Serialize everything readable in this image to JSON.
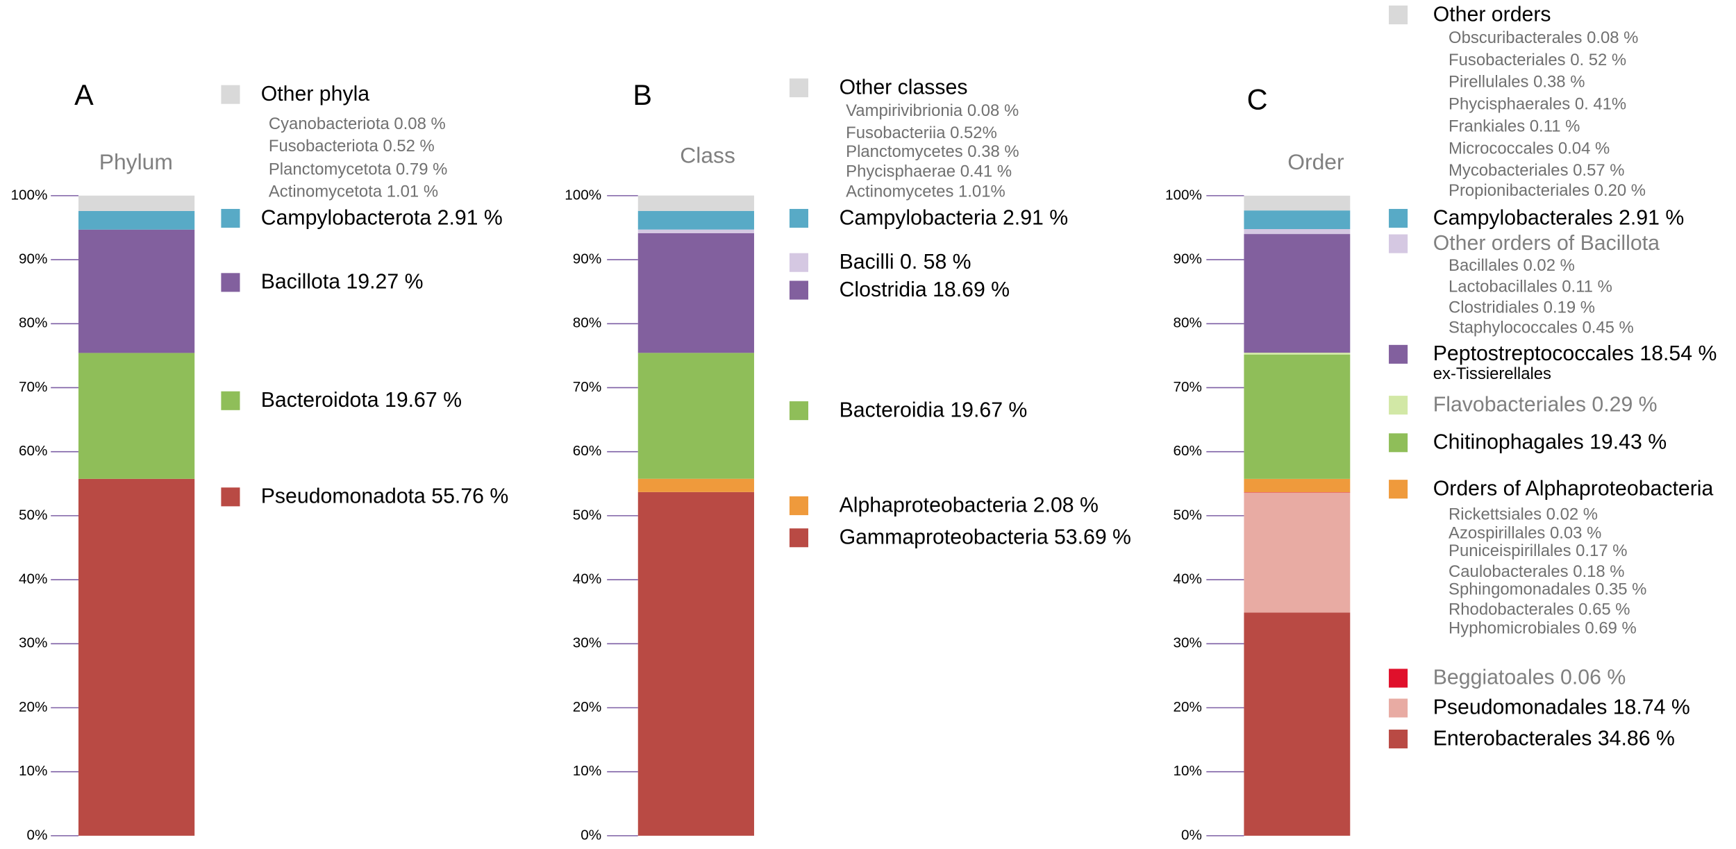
{
  "chart_data": [
    {
      "type": "stacked_bar",
      "panel": "A",
      "title": "Phylum",
      "ylim": [
        0,
        100
      ],
      "yticks": [
        {
          "value": 0,
          "label": "0%"
        },
        {
          "value": 10,
          "label": "10%"
        },
        {
          "value": 20,
          "label": "20%"
        },
        {
          "value": 30,
          "label": "30%"
        },
        {
          "value": 40,
          "label": "40%"
        },
        {
          "value": 50,
          "label": "50%"
        },
        {
          "value": 60,
          "label": "60%"
        },
        {
          "value": 70,
          "label": "70%"
        },
        {
          "value": 80,
          "label": "80%"
        },
        {
          "value": 90,
          "label": "90%"
        },
        {
          "value": 100,
          "label": "100%"
        }
      ],
      "series": [
        {
          "name": "Pseudomonadota 55.76 %",
          "color": "#b94a44",
          "values": [
            55.76
          ]
        },
        {
          "name": "Bacteroidota 19.67 %",
          "color": "#8fbe59",
          "values": [
            19.67
          ]
        },
        {
          "name": "Bacillota  19.27 %",
          "color": "#82609e",
          "values": [
            19.27
          ]
        },
        {
          "name": "Campylobacterota 2.91 %",
          "color": "#58aac6",
          "values": [
            2.91
          ]
        },
        {
          "name": "Other phyla",
          "color": "#d9d9d9",
          "values": [
            2.4
          ],
          "details": [
            "Cyanobacteriota 0.08 %",
            "Fusobacteriota 0.52 %",
            "Planctomycetota 0.79 %",
            "Actinomycetota 1.01 %"
          ]
        }
      ]
    },
    {
      "type": "stacked_bar",
      "panel": "B",
      "title": "Class",
      "ylim": [
        0,
        100
      ],
      "yticks": [
        {
          "value": 0,
          "label": "0%"
        },
        {
          "value": 10,
          "label": "10%"
        },
        {
          "value": 20,
          "label": "20%"
        },
        {
          "value": 30,
          "label": "30%"
        },
        {
          "value": 40,
          "label": "40%"
        },
        {
          "value": 50,
          "label": "50%"
        },
        {
          "value": 60,
          "label": "60%"
        },
        {
          "value": 70,
          "label": "70%"
        },
        {
          "value": 80,
          "label": "80%"
        },
        {
          "value": 90,
          "label": "90%"
        },
        {
          "value": 100,
          "label": "100%"
        }
      ],
      "series": [
        {
          "name": "Gammaproteobacteria 53.69 %",
          "color": "#b94a44",
          "values": [
            53.69
          ]
        },
        {
          "name": "Alphaproteobacteria 2.08 %",
          "color": "#ef9a3c",
          "values": [
            2.08
          ]
        },
        {
          "name": "Bacteroidia 19.67 %",
          "color": "#8fbe59",
          "values": [
            19.67
          ]
        },
        {
          "name": "Clostridia 18.69 %",
          "color": "#82609e",
          "values": [
            18.69
          ]
        },
        {
          "name": "Bacilli 0. 58 %",
          "color": "#d5c8e2",
          "values": [
            0.58
          ]
        },
        {
          "name": "Campylobacteria 2.91 %",
          "color": "#58aac6",
          "values": [
            2.91
          ]
        },
        {
          "name": "Other classes",
          "color": "#d9d9d9",
          "values": [
            2.4
          ],
          "details": [
            "Vampirivibrionia 0.08 %",
            "Fusobacteriia 0.52%",
            "Planctomycetes 0.38 %",
            "Phycisphaerae 0.41 %",
            "Actinomycetes 1.01%"
          ]
        }
      ]
    },
    {
      "type": "stacked_bar",
      "panel": "C",
      "title": "Order",
      "ylim": [
        0,
        100
      ],
      "yticks": [
        {
          "value": 0,
          "label": "0%"
        },
        {
          "value": 10,
          "label": "10%"
        },
        {
          "value": 20,
          "label": "20%"
        },
        {
          "value": 30,
          "label": "30%"
        },
        {
          "value": 40,
          "label": "40%"
        },
        {
          "value": 50,
          "label": "50%"
        },
        {
          "value": 60,
          "label": "60%"
        },
        {
          "value": 70,
          "label": "70%"
        },
        {
          "value": 80,
          "label": "80%"
        },
        {
          "value": 90,
          "label": "90%"
        },
        {
          "value": 100,
          "label": "100%"
        }
      ],
      "series": [
        {
          "name": "Enterobacterales 34.86 %",
          "color": "#b94a44",
          "values": [
            34.86
          ]
        },
        {
          "name": "Pseudomonadales 18.74 %",
          "color": "#e8aba3",
          "values": [
            18.74
          ]
        },
        {
          "name": "Beggiatoales 0.06 %",
          "color": "#e0102b",
          "values": [
            0.06
          ],
          "text_color": "#808080"
        },
        {
          "name": "Orders of Alphaproteobacteria",
          "color": "#ef9a3c",
          "values": [
            2.09
          ],
          "details": [
            "Rickettsiales 0.02 %",
            "Azospirillales 0.03 %",
            "Puniceispirillales 0.17 %",
            "Caulobacterales 0.18 %",
            "Sphingomonadales 0.35 %",
            "Rhodobacterales 0.65 %",
            "Hyphomicrobiales 0.69 %"
          ]
        },
        {
          "name": "Chitinophagales 19.43 %",
          "color": "#8fbe59",
          "values": [
            19.43
          ]
        },
        {
          "name": "Flavobacteriales 0.29 %",
          "color": "#d2e8a6",
          "values": [
            0.29
          ],
          "text_color": "#808080"
        },
        {
          "name": "Peptostreptococcales 18.54 %",
          "color": "#82609e",
          "values": [
            18.54
          ],
          "note": "ex-Tissierellales"
        },
        {
          "name": "Other orders of Bacillota",
          "color": "#d5c8e2",
          "values": [
            0.77
          ],
          "text_color": "#808080",
          "details": [
            "Bacillales 0.02 %",
            "Lactobacillales 0.11 %",
            "Clostridiales 0.19 %",
            "Staphylococcales 0.45 %"
          ]
        },
        {
          "name": "Campylobacterales 2.91 %",
          "color": "#58aac6",
          "values": [
            2.91
          ]
        },
        {
          "name": "Other orders",
          "color": "#d9d9d9",
          "values": [
            2.31
          ],
          "details": [
            "Obscuribacterales  0.08 %",
            "Fusobacteriales 0. 52 %",
            "Pirellulales 0.38 %",
            "Phycisphaerales 0. 41%",
            "Frankiales 0.11 %",
            "Micrococcales 0.04 %",
            "Mycobacteriales 0.57 %",
            "Propionibacteriales 0.20 %"
          ]
        }
      ]
    }
  ]
}
